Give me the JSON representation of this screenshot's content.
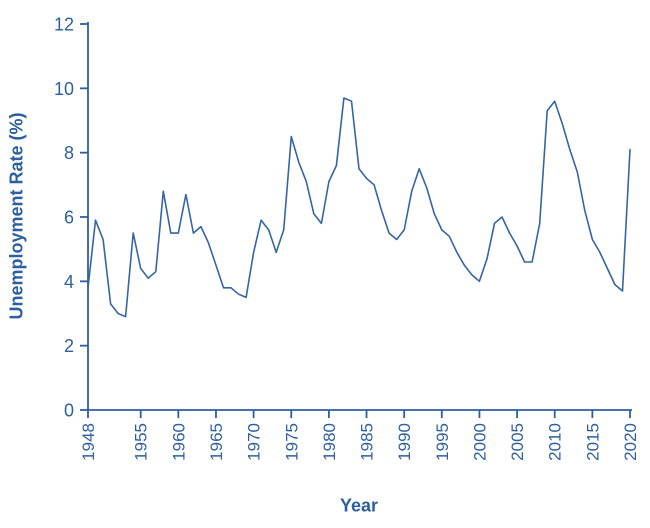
{
  "figure": {
    "background": "#ffffff"
  },
  "chart_data": {
    "type": "line",
    "title": "",
    "xlabel": "Year",
    "ylabel": "Unemployment Rate (%)",
    "legend": "none",
    "grid": false,
    "ylim": [
      0,
      12
    ],
    "yticks": [
      0,
      2,
      4,
      6,
      8,
      10,
      12
    ],
    "xticks": [
      1948,
      1955,
      1960,
      1965,
      1970,
      1975,
      1980,
      1985,
      1990,
      1995,
      2000,
      2005,
      2010,
      2015,
      2020
    ],
    "x": [
      1948,
      1949,
      1950,
      1951,
      1952,
      1953,
      1954,
      1955,
      1956,
      1957,
      1958,
      1959,
      1960,
      1961,
      1962,
      1963,
      1964,
      1965,
      1966,
      1967,
      1968,
      1969,
      1970,
      1971,
      1972,
      1973,
      1974,
      1975,
      1976,
      1977,
      1978,
      1979,
      1980,
      1981,
      1982,
      1983,
      1984,
      1985,
      1986,
      1987,
      1988,
      1989,
      1990,
      1991,
      1992,
      1993,
      1994,
      1995,
      1996,
      1997,
      1998,
      1999,
      2000,
      2001,
      2002,
      2003,
      2004,
      2005,
      2006,
      2007,
      2008,
      2009,
      2010,
      2011,
      2012,
      2013,
      2014,
      2015,
      2016,
      2017,
      2018,
      2019,
      2020
    ],
    "series": [
      {
        "name": "Unemployment Rate",
        "values": [
          3.8,
          5.9,
          5.3,
          3.3,
          3.0,
          2.9,
          5.5,
          4.4,
          4.1,
          4.3,
          6.8,
          5.5,
          5.5,
          6.7,
          5.5,
          5.7,
          5.2,
          4.5,
          3.8,
          3.8,
          3.6,
          3.5,
          4.9,
          5.9,
          5.6,
          4.9,
          5.6,
          8.5,
          7.7,
          7.1,
          6.1,
          5.8,
          7.1,
          7.6,
          9.7,
          9.6,
          7.5,
          7.2,
          7.0,
          6.2,
          5.5,
          5.3,
          5.6,
          6.8,
          7.5,
          6.9,
          6.1,
          5.6,
          5.4,
          4.9,
          4.5,
          4.2,
          4.0,
          4.7,
          5.8,
          6.0,
          5.5,
          5.1,
          4.6,
          4.6,
          5.8,
          9.3,
          9.6,
          8.9,
          8.1,
          7.4,
          6.2,
          5.3,
          4.9,
          4.4,
          3.9,
          3.7,
          8.1
        ]
      }
    ],
    "line_color": "#3465a4",
    "axis_color": "#2d5f9e",
    "label_color": "#2d5f9e"
  }
}
